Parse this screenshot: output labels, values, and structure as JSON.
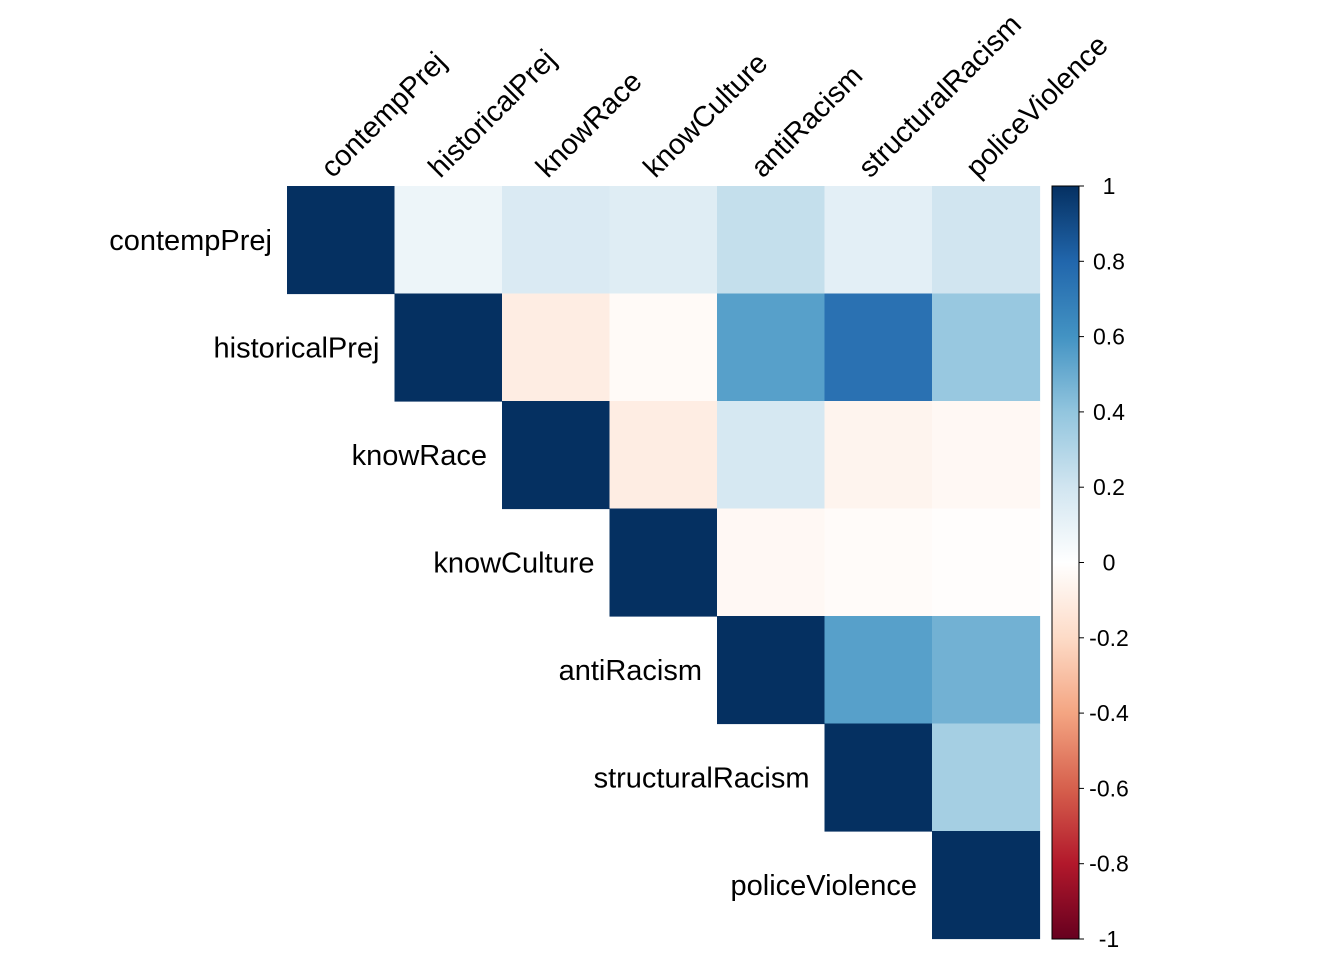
{
  "chart_data": {
    "type": "heatmap",
    "variables": [
      "contempPrej",
      "historicalPrej",
      "knowRace",
      "knowCulture",
      "antiRacism",
      "structuralRacism",
      "policeViolence"
    ],
    "layout": "upper-triangle",
    "matrix": [
      [
        1.0,
        0.08,
        0.16,
        0.14,
        0.24,
        0.12,
        0.2
      ],
      [
        null,
        1.0,
        -0.1,
        -0.03,
        0.55,
        0.75,
        0.38
      ],
      [
        null,
        null,
        1.0,
        -0.1,
        0.18,
        -0.06,
        -0.04
      ],
      [
        null,
        null,
        null,
        1.0,
        -0.04,
        -0.02,
        -0.01
      ],
      [
        null,
        null,
        null,
        null,
        1.0,
        0.55,
        0.48
      ],
      [
        null,
        null,
        null,
        null,
        null,
        1.0,
        0.34
      ],
      [
        null,
        null,
        null,
        null,
        null,
        null,
        1.0
      ]
    ],
    "color_scale": {
      "range": [
        -1,
        1
      ],
      "ticks": [
        "1",
        "0.8",
        "0.6",
        "0.4",
        "0.2",
        "0",
        "-0.2",
        "-0.4",
        "-0.6",
        "-0.8",
        "-1"
      ],
      "colors": [
        "#67001F",
        "#B2182B",
        "#D6604D",
        "#F4A582",
        "#FDDBC7",
        "#FFFFFF",
        "#D1E5F0",
        "#92C5DE",
        "#4393C3",
        "#2166AC",
        "#053061"
      ]
    },
    "legend_position": "right"
  }
}
